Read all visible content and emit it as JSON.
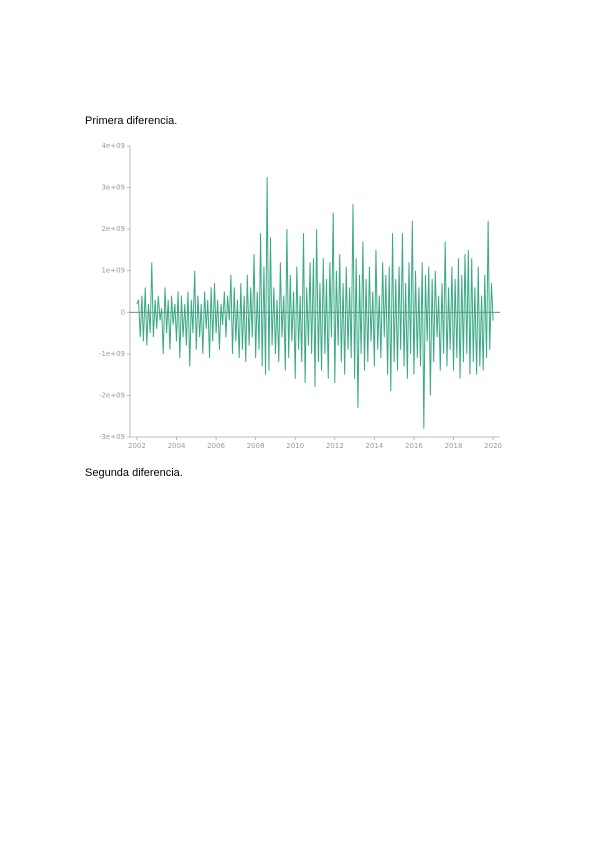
{
  "heading1": "Primera diferencia.",
  "heading2": "Segunda diferencia.",
  "chart_data": {
    "type": "line",
    "color": "#3aa985",
    "xlim": [
      2001.65,
      2020.35
    ],
    "ylim": [
      -3000000000.0,
      4000000000.0
    ],
    "xticks": [
      2002,
      2004,
      2006,
      2008,
      2010,
      2012,
      2014,
      2016,
      2018,
      2020
    ],
    "yticks": [
      {
        "value": -3000000000.0,
        "label": "-3e+09"
      },
      {
        "value": -2000000000.0,
        "label": "-2e+09"
      },
      {
        "value": -1000000000.0,
        "label": "-1e+09"
      },
      0,
      {
        "value": 1000000000.0,
        "label": "1e+09"
      },
      {
        "value": 2000000000.0,
        "label": "2e+09"
      },
      {
        "value": 3000000000.0,
        "label": "3e+09"
      },
      {
        "value": 4000000000.0,
        "label": "4e+09"
      }
    ],
    "x": [
      2002,
      2002.08,
      2002.17,
      2002.25,
      2002.33,
      2002.42,
      2002.5,
      2002.58,
      2002.67,
      2002.75,
      2002.83,
      2002.92,
      2003,
      2003.08,
      2003.17,
      2003.25,
      2003.33,
      2003.42,
      2003.5,
      2003.58,
      2003.67,
      2003.75,
      2003.83,
      2003.92,
      2004,
      2004.08,
      2004.17,
      2004.25,
      2004.33,
      2004.42,
      2004.5,
      2004.58,
      2004.67,
      2004.75,
      2004.83,
      2004.92,
      2005,
      2005.08,
      2005.17,
      2005.25,
      2005.33,
      2005.42,
      2005.5,
      2005.58,
      2005.67,
      2005.75,
      2005.83,
      2005.92,
      2006,
      2006.08,
      2006.17,
      2006.25,
      2006.33,
      2006.42,
      2006.5,
      2006.58,
      2006.67,
      2006.75,
      2006.83,
      2006.92,
      2007,
      2007.08,
      2007.17,
      2007.25,
      2007.33,
      2007.42,
      2007.5,
      2007.58,
      2007.67,
      2007.75,
      2007.83,
      2007.92,
      2008,
      2008.08,
      2008.17,
      2008.25,
      2008.33,
      2008.42,
      2008.5,
      2008.58,
      2008.67,
      2008.75,
      2008.83,
      2008.92,
      2009,
      2009.08,
      2009.17,
      2009.25,
      2009.33,
      2009.42,
      2009.5,
      2009.58,
      2009.67,
      2009.75,
      2009.83,
      2009.92,
      2010,
      2010.08,
      2010.17,
      2010.25,
      2010.33,
      2010.42,
      2010.5,
      2010.58,
      2010.67,
      2010.75,
      2010.83,
      2010.92,
      2011,
      2011.08,
      2011.17,
      2011.25,
      2011.33,
      2011.42,
      2011.5,
      2011.58,
      2011.67,
      2011.75,
      2011.83,
      2011.92,
      2012,
      2012.08,
      2012.17,
      2012.25,
      2012.33,
      2012.42,
      2012.5,
      2012.58,
      2012.67,
      2012.75,
      2012.83,
      2012.92,
      2013,
      2013.08,
      2013.17,
      2013.25,
      2013.33,
      2013.42,
      2013.5,
      2013.58,
      2013.67,
      2013.75,
      2013.83,
      2013.92,
      2014,
      2014.08,
      2014.17,
      2014.25,
      2014.33,
      2014.42,
      2014.5,
      2014.58,
      2014.67,
      2014.75,
      2014.83,
      2014.92,
      2015,
      2015.08,
      2015.17,
      2015.25,
      2015.33,
      2015.42,
      2015.5,
      2015.58,
      2015.67,
      2015.75,
      2015.83,
      2015.92,
      2016,
      2016.08,
      2016.17,
      2016.25,
      2016.33,
      2016.42,
      2016.5,
      2016.58,
      2016.67,
      2016.75,
      2016.83,
      2016.92,
      2017,
      2017.08,
      2017.17,
      2017.25,
      2017.33,
      2017.42,
      2017.5,
      2017.58,
      2017.67,
      2017.75,
      2017.83,
      2017.92,
      2018,
      2018.08,
      2018.17,
      2018.25,
      2018.33,
      2018.42,
      2018.5,
      2018.58,
      2018.67,
      2018.75,
      2018.83,
      2018.92,
      2019,
      2019.08,
      2019.17,
      2019.25,
      2019.33,
      2019.42,
      2019.5,
      2019.58,
      2019.67,
      2019.75,
      2019.83,
      2019.92,
      2020
    ],
    "values": [
      200000000.0,
      300000000.0,
      -600000000.0,
      400000000.0,
      -700000000.0,
      600000000.0,
      -800000000.0,
      200000000.0,
      -500000000.0,
      1200000000.0,
      -600000000.0,
      300000000.0,
      -400000000.0,
      400000000.0,
      -200000000.0,
      100000000.0,
      -1000000000.0,
      600000000.0,
      -500000000.0,
      300000000.0,
      -900000000.0,
      400000000.0,
      -300000000.0,
      200000000.0,
      -700000000.0,
      500000000.0,
      -1100000000.0,
      400000000.0,
      -600000000.0,
      200000000.0,
      -800000000.0,
      500000000.0,
      -1300000000.0,
      300000000.0,
      -500000000.0,
      1000000000.0,
      -900000000.0,
      400000000.0,
      -600000000.0,
      200000000.0,
      -1000000000.0,
      500000000.0,
      -400000000.0,
      300000000.0,
      -1100000000.0,
      600000000.0,
      -700000000.0,
      700000000.0,
      -500000000.0,
      300000000.0,
      -900000000.0,
      200000000.0,
      -300000000.0,
      500000000.0,
      -600000000.0,
      400000000.0,
      -200000000.0,
      900000000.0,
      -1000000000.0,
      600000000.0,
      -700000000.0,
      300000000.0,
      -1100000000.0,
      700000000.0,
      -900000000.0,
      400000000.0,
      -1200000000.0,
      900000000.0,
      -800000000.0,
      600000000.0,
      -600000000.0,
      1400000000.0,
      -1100000000.0,
      500000000.0,
      -900000000.0,
      1900000000.0,
      -1300000000.0,
      1100000000.0,
      -1500000000.0,
      3250000000.0,
      -1400000000.0,
      1800000000.0,
      -800000000.0,
      600000000.0,
      -1000000000.0,
      300000000.0,
      -1200000000.0,
      1200000000.0,
      -600000000.0,
      400000000.0,
      -1400000000.0,
      2000000000.0,
      -1100000000.0,
      900000000.0,
      -700000000.0,
      500000000.0,
      -1600000000.0,
      1100000000.0,
      -900000000.0,
      400000000.0,
      -1200000000.0,
      1900000000.0,
      -1700000000.0,
      600000000.0,
      -800000000.0,
      1200000000.0,
      -1000000000.0,
      1300000000.0,
      -1800000000.0,
      2000000000.0,
      -1200000000.0,
      700000000.0,
      -1400000000.0,
      1300000000.0,
      -1000000000.0,
      800000000.0,
      -1600000000.0,
      1200000000.0,
      -600000000.0,
      2400000000.0,
      -1700000000.0,
      1000000000.0,
      -800000000.0,
      1400000000.0,
      -1200000000.0,
      700000000.0,
      -1500000000.0,
      1100000000.0,
      -900000000.0,
      600000000.0,
      -1100000000.0,
      2600000000.0,
      -1600000000.0,
      1300000000.0,
      -2300000000.0,
      900000000.0,
      -1000000000.0,
      1700000000.0,
      -1400000000.0,
      800000000.0,
      -1200000000.0,
      1100000000.0,
      -700000000.0,
      500000000.0,
      -1300000000.0,
      1500000000.0,
      -900000000.0,
      400000000.0,
      -1100000000.0,
      1200000000.0,
      -600000000.0,
      900000000.0,
      -1500000000.0,
      1100000000.0,
      -1900000000.0,
      1900000000.0,
      -1200000000.0,
      800000000.0,
      -1400000000.0,
      1100000000.0,
      -900000000.0,
      1900000000.0,
      -1300000000.0,
      700000000.0,
      -1600000000.0,
      1200000000.0,
      -1000000000.0,
      2200000000.0,
      -1500000000.0,
      1000000000.0,
      -1100000000.0,
      600000000.0,
      -1300000000.0,
      1200000000.0,
      -2800000000.0,
      900000000.0,
      -700000000.0,
      1100000000.0,
      -2000000000.0,
      800000000.0,
      -1200000000.0,
      1000000000.0,
      -600000000.0,
      400000000.0,
      -1400000000.0,
      700000000.0,
      -1000000000.0,
      1700000000.0,
      -1300000000.0,
      600000000.0,
      -900000000.0,
      1100000000.0,
      -1400000000.0,
      800000000.0,
      -1100000000.0,
      1300000000.0,
      -1600000000.0,
      900000000.0,
      -1200000000.0,
      1400000000.0,
      -1000000000.0,
      1500000000.0,
      -1500000000.0,
      1300000000.0,
      -1200000000.0,
      600000000.0,
      -1500000000.0,
      1100000000.0,
      -1300000000.0,
      400000000.0,
      -1400000000.0,
      900000000.0,
      -1100000000.0,
      2200000000.0,
      -900000000.0,
      700000000.0,
      -200000000.0
    ]
  }
}
